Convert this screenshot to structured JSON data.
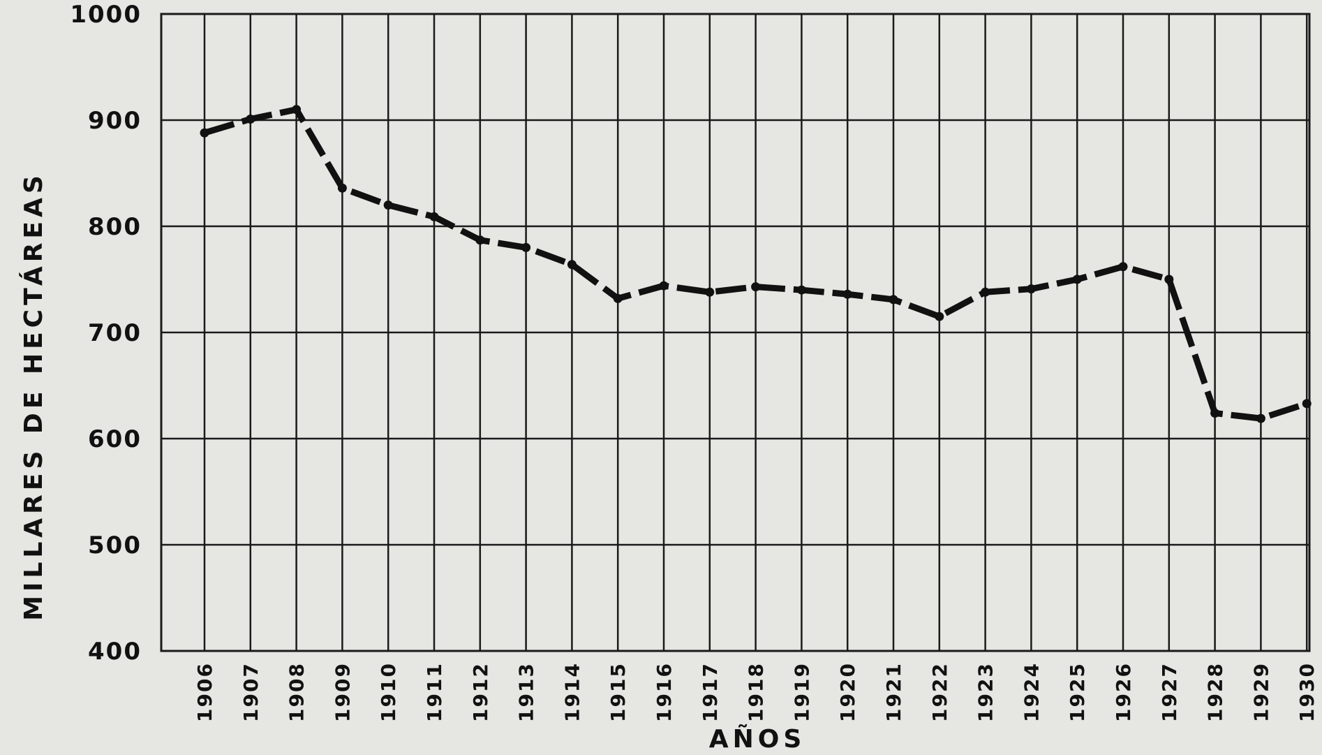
{
  "chart_data": {
    "type": "line",
    "title": "",
    "xlabel": "AÑOS",
    "ylabel": "MILLARES DE HECTÁREAS",
    "ylim": [
      400,
      1000
    ],
    "yticks": [
      "400",
      "500",
      "600",
      "700",
      "800",
      "900",
      "1000"
    ],
    "grid": true,
    "legend": "none",
    "line_style": "dashed",
    "line_color": "#111111",
    "x": [
      "1906",
      "1907",
      "1908",
      "1909",
      "1910",
      "1911",
      "1912",
      "1913",
      "1914",
      "1915",
      "1916",
      "1917",
      "1918",
      "1919",
      "1920",
      "1921",
      "1922",
      "1923",
      "1924",
      "1925",
      "1926",
      "1927",
      "1928",
      "1929",
      "1930"
    ],
    "series": [
      {
        "values": [
          888,
          901,
          910,
          836,
          820,
          809,
          787,
          780,
          764,
          732,
          744,
          738,
          743,
          740,
          736,
          731,
          715,
          738,
          741,
          750,
          762,
          750,
          624,
          619,
          633
        ]
      }
    ]
  }
}
